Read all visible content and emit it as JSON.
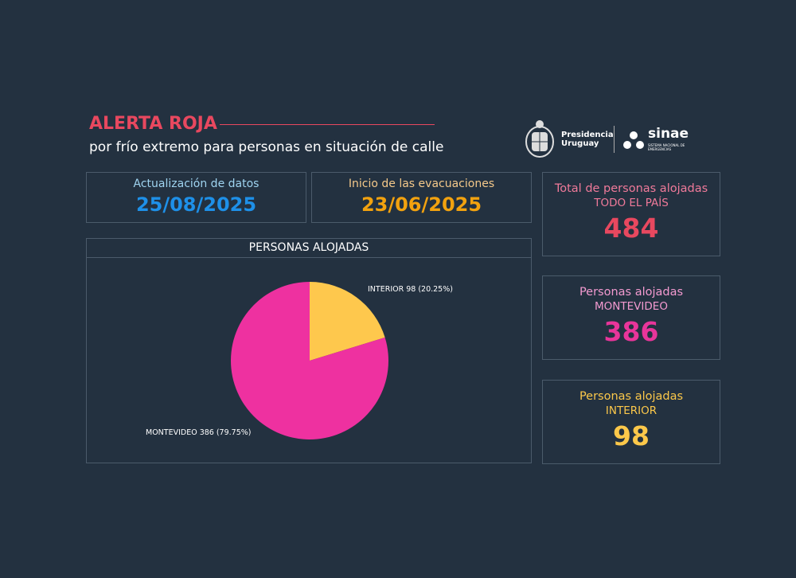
{
  "header": {
    "title": "ALERTA ROJA",
    "subtitle": "por frío extremo para personas en situación de calle",
    "logo_presidencia": "Presidencia Uruguay",
    "logo_sinae": "sinae",
    "logo_sinae_sub": "SISTEMA NACIONAL DE EMERGENCIAS"
  },
  "dates": {
    "update_label": "Actualización de datos",
    "update_value": "25/08/2025",
    "start_label": "Inicio de las evacuaciones",
    "start_value": "23/06/2025"
  },
  "kpis": [
    {
      "label": "Total de personas alojadas",
      "sub": "TODO EL PAÍS",
      "value": "484",
      "color": "#e8485f",
      "label_color": "#f07a9a"
    },
    {
      "label": "Personas alojadas",
      "sub": "MONTEVIDEO",
      "value": "386",
      "color": "#e8359a",
      "label_color": "#f39ad0"
    },
    {
      "label": "Personas alojadas",
      "sub": "INTERIOR",
      "value": "98",
      "color": "#fcc84a",
      "label_color": "#fcc84a"
    }
  ],
  "colors": {
    "background": "#233140",
    "red": "#e8485f",
    "blue": "#1e90e8",
    "orange": "#f2a20f"
  },
  "chart_data": {
    "type": "pie",
    "title": "PERSONAS ALOJADAS",
    "slices": [
      {
        "name": "INTERIOR",
        "value": 98,
        "percent": 20.25,
        "label": "INTERIOR 98 (20.25%)",
        "color": "#fec84d"
      },
      {
        "name": "MONTEVIDEO",
        "value": 386,
        "percent": 79.75,
        "label": "MONTEVIDEO 386 (79.75%)",
        "color": "#ee31a0"
      }
    ]
  }
}
